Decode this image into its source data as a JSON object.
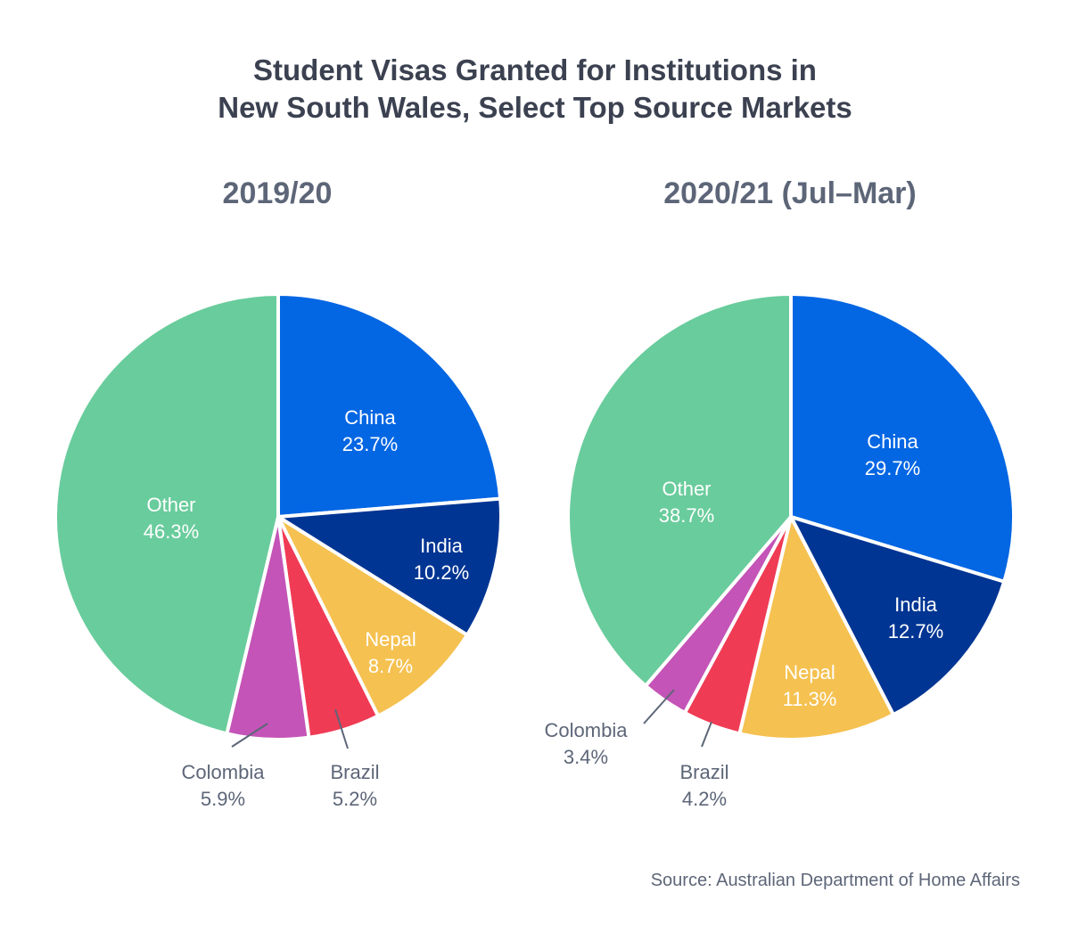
{
  "title_lines": [
    "Student Visas Granted for Institutions in",
    "New South Wales, Select Top Source Markets"
  ],
  "source": "Source: Australian Department of Home Affairs",
  "colors": {
    "China": "#0366e3",
    "India": "#003593",
    "Nepal": "#f5c150",
    "Brazil": "#f03b55",
    "Colombia": "#c454b7",
    "Other": "#69cc9c",
    "label_inside": "#ffffff",
    "label_outside": "#5d6678",
    "separator": "#ffffff"
  },
  "chart_data": [
    {
      "type": "pie",
      "title": "2019/20",
      "categories": [
        "China",
        "India",
        "Nepal",
        "Brazil",
        "Colombia",
        "Other"
      ],
      "values": [
        23.7,
        10.2,
        8.7,
        5.2,
        5.9,
        46.3
      ],
      "labels": [
        "23.7%",
        "10.2%",
        "8.7%",
        "5.2%",
        "5.9%",
        "46.3%"
      ],
      "start_angle": "12 o'clock",
      "direction": "clockwise"
    },
    {
      "type": "pie",
      "title": "2020/21 (Jul–Mar)",
      "categories": [
        "China",
        "India",
        "Nepal",
        "Brazil",
        "Colombia",
        "Other"
      ],
      "values": [
        29.7,
        12.7,
        11.3,
        4.2,
        3.4,
        38.7
      ],
      "labels": [
        "29.7%",
        "12.7%",
        "11.3%",
        "4.2%",
        "3.4%",
        "38.7%"
      ],
      "start_angle": "12 o'clock",
      "direction": "clockwise"
    }
  ]
}
